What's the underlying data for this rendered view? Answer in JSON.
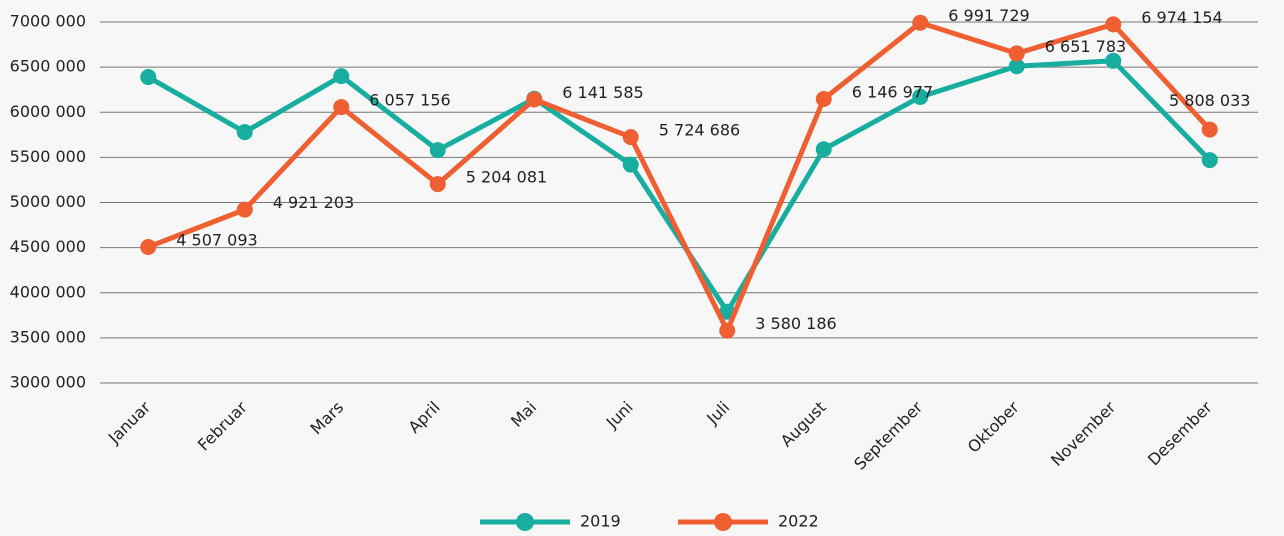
{
  "chart_data": {
    "type": "line",
    "categories": [
      "Januar",
      "Februar",
      "Mars",
      "April",
      "Mai",
      "Juni",
      "Juli",
      "August",
      "September",
      "Oktober",
      "November",
      "Desember"
    ],
    "series": [
      {
        "name": "2019",
        "color": "#17ae9f",
        "values": [
          6390000,
          5780000,
          6400000,
          5580000,
          6150000,
          5420000,
          3790000,
          5590000,
          6170000,
          6510000,
          6570000,
          5470000
        ]
      },
      {
        "name": "2022",
        "color": "#ef5f32",
        "values": [
          4507093,
          4921203,
          6057156,
          5204081,
          6141585,
          5724686,
          3580186,
          6146977,
          6991729,
          6651783,
          6974154,
          5808033
        ],
        "value_labels": [
          "4 507 093",
          "4 921 203",
          "6 057 156",
          "5 204 081",
          "6 141 585",
          "5 724 686",
          "3 580 186",
          "6 146 977",
          "6 991 729",
          "6 651 783",
          "6 974 154",
          "5 808 033"
        ]
      }
    ],
    "ylim": [
      3000000,
      7000000
    ],
    "yticks": [
      {
        "value": 3000000,
        "label": "3000 000"
      },
      {
        "value": 3500000,
        "label": "3500 000"
      },
      {
        "value": 4000000,
        "label": "4000 000"
      },
      {
        "value": 4500000,
        "label": "4500 000"
      },
      {
        "value": 5000000,
        "label": "5000 000"
      },
      {
        "value": 5500000,
        "label": "5500 000"
      },
      {
        "value": 6000000,
        "label": "6000 000"
      },
      {
        "value": 6500000,
        "label": "6500 000"
      },
      {
        "value": 7000000,
        "label": "7000 000"
      }
    ],
    "grid": true,
    "legend": "bottom"
  }
}
